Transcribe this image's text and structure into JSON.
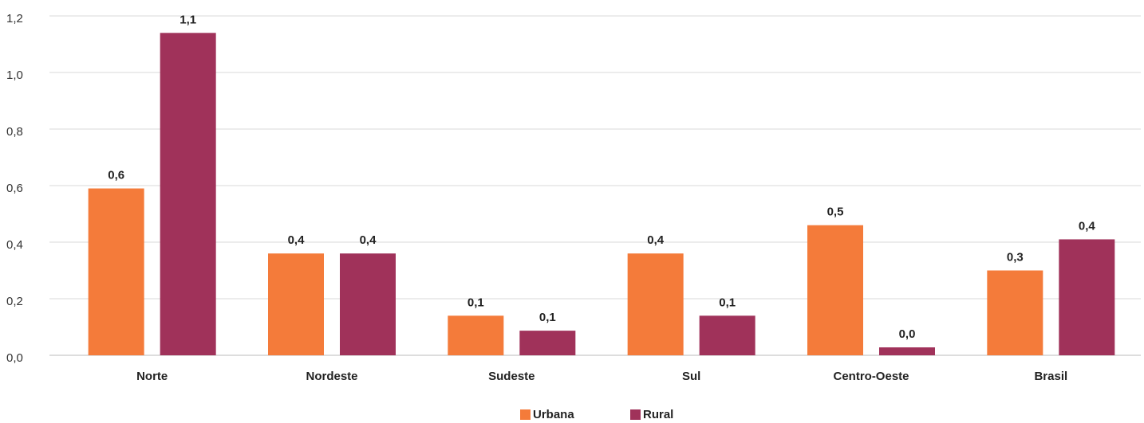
{
  "chart_data": {
    "type": "bar",
    "categories": [
      "Norte",
      "Nordeste",
      "Sudeste",
      "Sul",
      "Centro-Oeste",
      "Brasil"
    ],
    "series": [
      {
        "name": "Urbana",
        "color": "#f47b3a",
        "values": [
          0.59,
          0.36,
          0.14,
          0.36,
          0.46,
          0.3
        ],
        "value_labels": [
          "0,6",
          "0,4",
          "0,1",
          "0,4",
          "0,5",
          "0,3"
        ]
      },
      {
        "name": "Rural",
        "color": "#a0325a",
        "values": [
          1.14,
          0.36,
          0.087,
          0.14,
          0.028,
          0.41
        ],
        "value_labels": [
          "1,1",
          "0,4",
          "0,1",
          "0,1",
          "0,0",
          "0,4"
        ]
      }
    ],
    "ylim": [
      0,
      1.2
    ],
    "yticks": [
      {
        "value": 0,
        "label": "0,0"
      },
      {
        "value": 0.2,
        "label": "0,2"
      },
      {
        "value": 0.4,
        "label": "0,4"
      },
      {
        "value": 0.6,
        "label": "0,6"
      },
      {
        "value": 0.8,
        "label": "0,8"
      },
      {
        "value": 1.0,
        "label": "1,0"
      },
      {
        "value": 1.2,
        "label": "1,2"
      }
    ],
    "grid": true,
    "legend": "bottom"
  }
}
